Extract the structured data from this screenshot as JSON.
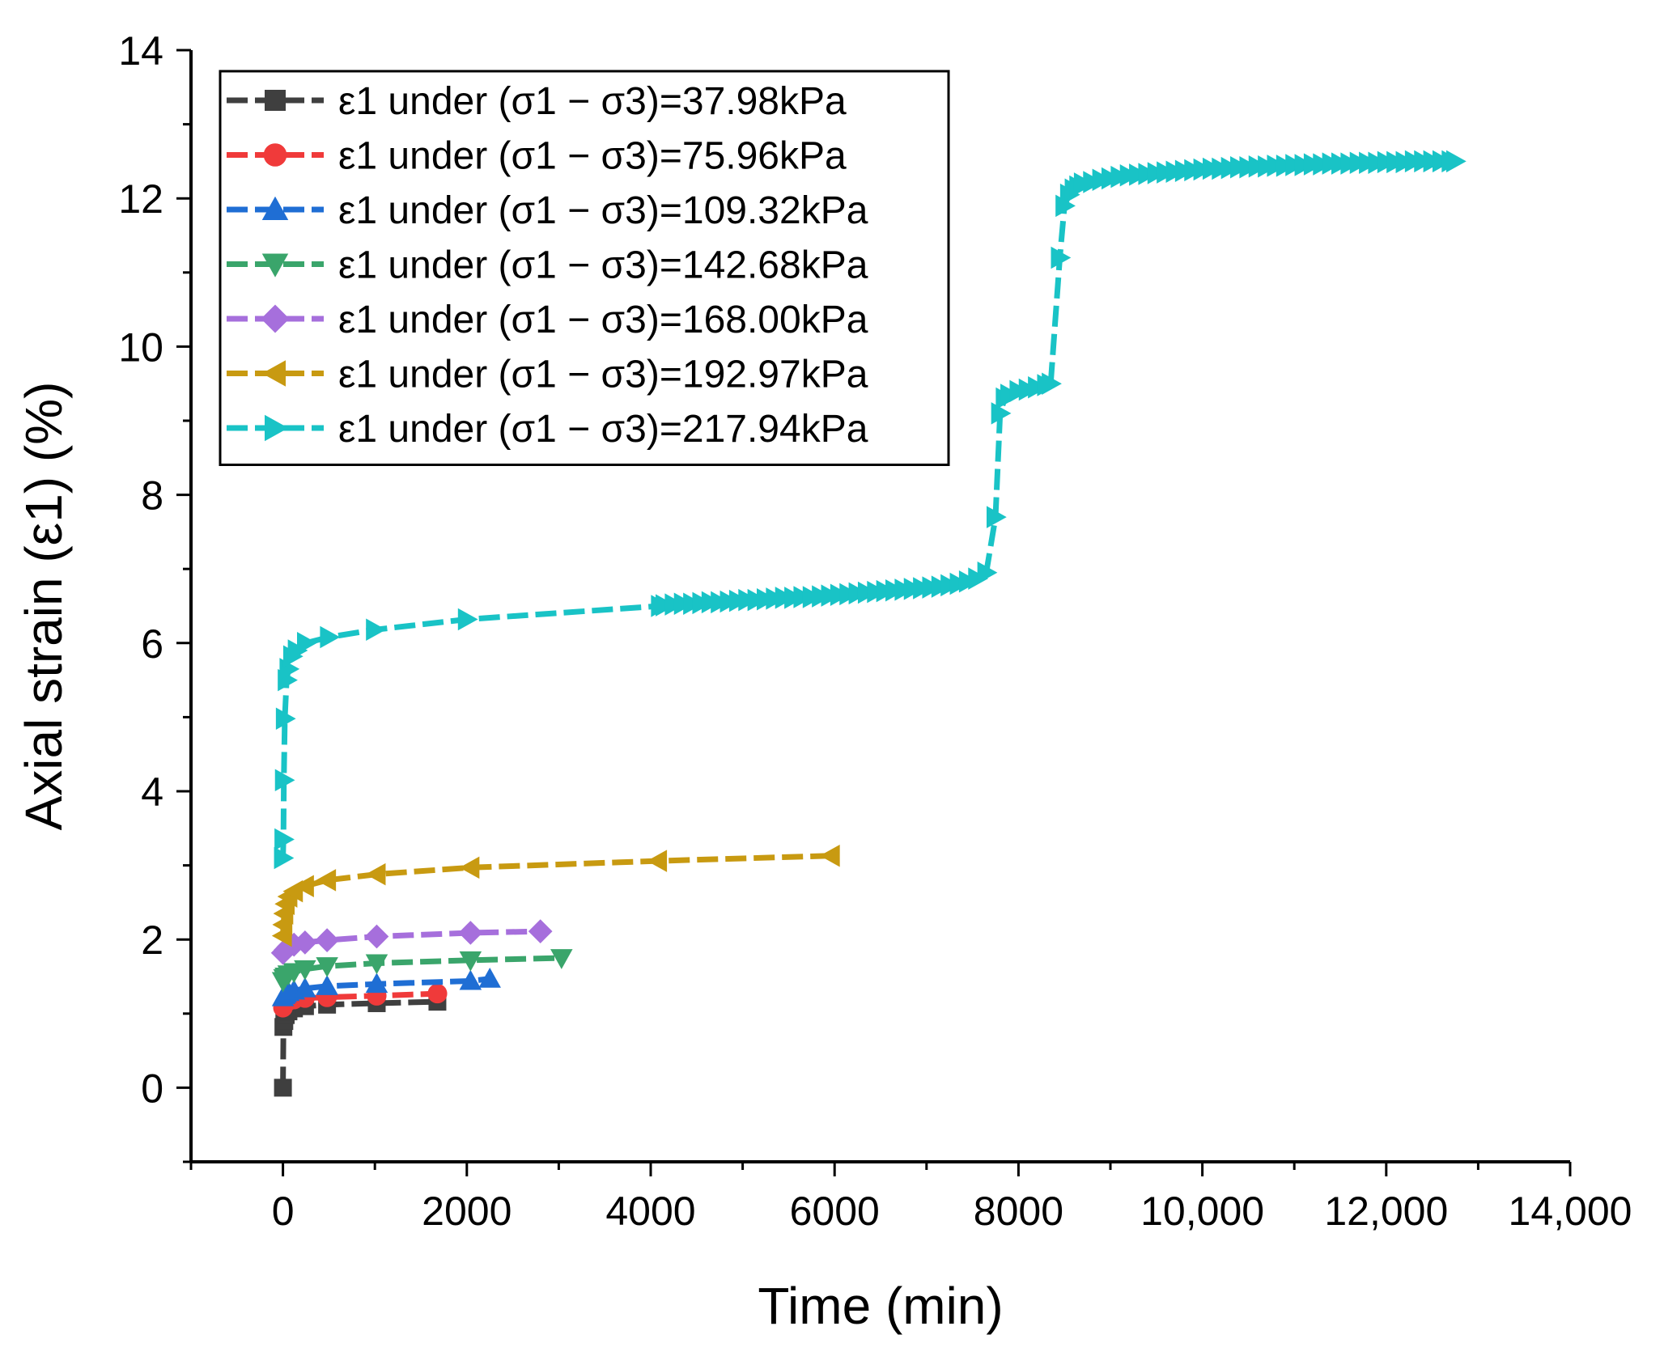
{
  "chart_data": {
    "type": "line",
    "title": "",
    "xlabel": "Time (min)",
    "ylabel": "Axial strain (ε1) (%)",
    "xlim": [
      -1000,
      14000
    ],
    "ylim": [
      -1,
      14
    ],
    "x_ticks": [
      0,
      2000,
      4000,
      6000,
      8000,
      10000,
      12000,
      14000
    ],
    "x_tick_labels": [
      "0",
      "2000",
      "4000",
      "6000",
      "8000",
      "10,000",
      "12,000",
      "14,000"
    ],
    "y_ticks": [
      0,
      2,
      4,
      6,
      8,
      10,
      12,
      14
    ],
    "y_tick_labels": [
      "0",
      "2",
      "4",
      "6",
      "8",
      "10",
      "12",
      "14"
    ],
    "grid": false,
    "legend_position": "top-left",
    "series": [
      {
        "name": "ε1 under (σ1 − σ3)=37.98kPa",
        "color": "#3f3f3f",
        "marker": "square",
        "x": [
          0,
          5,
          15,
          30,
          60,
          120,
          240,
          480,
          1020,
          1680
        ],
        "y": [
          0.0,
          0.82,
          0.9,
          0.98,
          1.03,
          1.07,
          1.1,
          1.12,
          1.14,
          1.16
        ]
      },
      {
        "name": "ε1 under (σ1 − σ3)=75.96kPa",
        "color": "#f03a3a",
        "marker": "circle",
        "x": [
          0,
          5,
          15,
          30,
          60,
          120,
          240,
          480,
          1020,
          1680
        ],
        "y": [
          1.08,
          1.1,
          1.13,
          1.15,
          1.17,
          1.19,
          1.21,
          1.22,
          1.24,
          1.27
        ]
      },
      {
        "name": "ε1 under (σ1 − σ3)=109.32kPa",
        "color": "#1f6ed4",
        "marker": "triangle-up",
        "x": [
          0,
          15,
          30,
          60,
          120,
          240,
          480,
          1020,
          2040,
          2250
        ],
        "y": [
          1.22,
          1.25,
          1.27,
          1.29,
          1.31,
          1.34,
          1.37,
          1.4,
          1.44,
          1.47
        ]
      },
      {
        "name": "ε1 under (σ1 − σ3)=142.68kPa",
        "color": "#3aa56b",
        "marker": "triangle-down",
        "x": [
          0,
          15,
          30,
          60,
          120,
          240,
          480,
          1020,
          2040,
          3030
        ],
        "y": [
          1.44,
          1.48,
          1.5,
          1.53,
          1.56,
          1.6,
          1.64,
          1.68,
          1.72,
          1.75
        ]
      },
      {
        "name": "ε1 under (σ1 − σ3)=168.00kPa",
        "color": "#a66fdc",
        "marker": "diamond",
        "x": [
          0,
          30,
          60,
          120,
          240,
          480,
          1020,
          2040,
          2800
        ],
        "y": [
          1.82,
          1.86,
          1.9,
          1.93,
          1.96,
          1.99,
          2.04,
          2.09,
          2.11
        ]
      },
      {
        "name": "ε1 under (σ1 − σ3)=192.97kPa",
        "color": "#c89a11",
        "marker": "triangle-left",
        "x": [
          0,
          5,
          15,
          30,
          60,
          120,
          240,
          480,
          1020,
          2040,
          4080,
          5960
        ],
        "y": [
          2.05,
          2.2,
          2.35,
          2.48,
          2.58,
          2.65,
          2.72,
          2.8,
          2.88,
          2.97,
          3.06,
          3.13
        ]
      },
      {
        "name": "ε1 under (σ1 − σ3)=217.94kPa",
        "color": "#19c3c6",
        "marker": "triangle-right",
        "x": [
          0,
          5,
          10,
          20,
          40,
          60,
          100,
          150,
          250,
          500,
          1000,
          2000,
          4100,
          4150,
          4250,
          4350,
          4450,
          4550,
          4650,
          4750,
          4850,
          4950,
          5050,
          5150,
          5250,
          5350,
          5450,
          5550,
          5650,
          5750,
          5850,
          5950,
          6050,
          6150,
          6250,
          6350,
          6450,
          6550,
          6650,
          6750,
          6850,
          6950,
          7050,
          7150,
          7250,
          7350,
          7450,
          7550,
          7650,
          7750,
          7800,
          7850,
          7900,
          8000,
          8100,
          8200,
          8300,
          8350,
          8450,
          8500,
          8550,
          8600,
          8650,
          8700,
          8800,
          8900,
          9000,
          9100,
          9200,
          9300,
          9400,
          9500,
          9600,
          9700,
          9800,
          9900,
          10000,
          10100,
          10200,
          10300,
          10400,
          10500,
          10600,
          10700,
          10800,
          10900,
          11000,
          11100,
          11200,
          11300,
          11400,
          11500,
          11600,
          11700,
          11800,
          11900,
          12000,
          12100,
          12200,
          12300,
          12400,
          12500,
          12600,
          12700,
          12750
        ],
        "y": [
          3.1,
          3.35,
          4.15,
          4.98,
          5.5,
          5.65,
          5.82,
          5.9,
          6.0,
          6.08,
          6.18,
          6.32,
          6.5,
          6.51,
          6.52,
          6.53,
          6.53,
          6.54,
          6.55,
          6.55,
          6.56,
          6.57,
          6.58,
          6.58,
          6.59,
          6.6,
          6.61,
          6.61,
          6.62,
          6.62,
          6.63,
          6.64,
          6.65,
          6.66,
          6.67,
          6.68,
          6.69,
          6.7,
          6.71,
          6.72,
          6.73,
          6.74,
          6.75,
          6.76,
          6.78,
          6.8,
          6.83,
          6.87,
          6.95,
          7.7,
          9.1,
          9.3,
          9.35,
          9.4,
          9.42,
          9.45,
          9.48,
          9.5,
          11.2,
          11.9,
          12.05,
          12.12,
          12.16,
          12.2,
          12.22,
          12.25,
          12.27,
          12.29,
          12.31,
          12.32,
          12.33,
          12.34,
          12.35,
          12.36,
          12.37,
          12.38,
          12.39,
          12.4,
          12.4,
          12.41,
          12.42,
          12.42,
          12.43,
          12.43,
          12.44,
          12.44,
          12.45,
          12.45,
          12.46,
          12.46,
          12.47,
          12.47,
          12.47,
          12.48,
          12.48,
          12.48,
          12.49,
          12.49,
          12.49,
          12.5,
          12.5,
          12.5,
          12.5,
          12.5,
          12.5
        ]
      }
    ]
  }
}
